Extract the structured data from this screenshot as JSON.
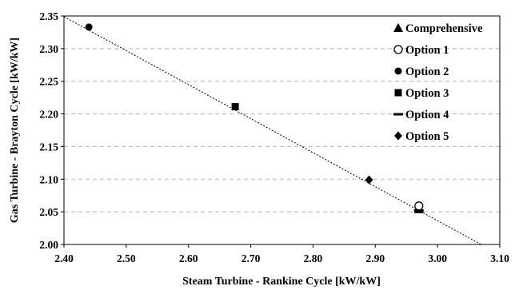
{
  "chart_data": {
    "type": "scatter",
    "xlabel": "Steam Turbine - Rankine Cycle [kW/kW]",
    "ylabel": "Gas Turbine - Brayton Cycle [kW/kW]",
    "xlim": [
      2.4,
      3.1
    ],
    "ylim": [
      2.0,
      2.35
    ],
    "x_ticks": [
      "2.40",
      "2.50",
      "2.60",
      "2.70",
      "2.80",
      "2.90",
      "3.00",
      "3.10"
    ],
    "y_ticks": [
      "2.00",
      "2.05",
      "2.10",
      "2.15",
      "2.20",
      "2.25",
      "2.30",
      "2.35"
    ],
    "grid": "horizontal dashed",
    "legend_position": "top-right",
    "series": [
      {
        "name": "Comprehensive",
        "marker": "triangle",
        "points": [
          {
            "x": 2.97,
            "y": 2.054
          }
        ]
      },
      {
        "name": "Option 1",
        "marker": "open-circle",
        "points": [
          {
            "x": 2.97,
            "y": 2.059
          }
        ]
      },
      {
        "name": "Option 2",
        "marker": "circle",
        "points": [
          {
            "x": 2.44,
            "y": 2.333
          }
        ]
      },
      {
        "name": "Option 3",
        "marker": "square",
        "points": [
          {
            "x": 2.675,
            "y": 2.211
          }
        ]
      },
      {
        "name": "Option 4",
        "marker": "dash",
        "points": [
          {
            "x": 2.97,
            "y": 2.052
          }
        ]
      },
      {
        "name": "Option 5",
        "marker": "diamond",
        "points": [
          {
            "x": 2.89,
            "y": 2.099
          }
        ]
      }
    ],
    "trend_line": {
      "style": "dotted",
      "from": {
        "x": 2.4,
        "y": 2.349
      },
      "to": {
        "x": 3.07,
        "y": 2.0
      }
    }
  }
}
